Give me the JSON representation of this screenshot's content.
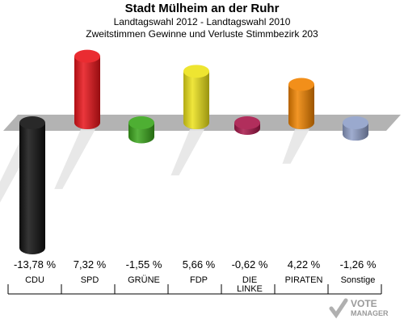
{
  "chart_data": {
    "type": "bar",
    "title": "Stadt Mülheim an der Ruhr",
    "subtitle_1": "Landtagswahl 2012 - Landtagswahl 2010",
    "subtitle_2": "Zweitstimmen Gewinne und Verluste Stimmbezirk 203",
    "categories": [
      "CDU",
      "SPD",
      "GRÜNE",
      "FDP",
      "DIE LINKE",
      "PIRATEN",
      "Sonstige"
    ],
    "category_lines": [
      [
        "CDU"
      ],
      [
        "SPD"
      ],
      [
        "GRÜNE"
      ],
      [
        "FDP"
      ],
      [
        "DIE",
        "LINKE"
      ],
      [
        "PIRATEN"
      ],
      [
        "Sonstige"
      ]
    ],
    "values": [
      -13.78,
      7.32,
      -1.55,
      5.66,
      -0.62,
      4.22,
      -1.26
    ],
    "value_labels": [
      "-13,78 %",
      "7,32 %",
      "-1,55 %",
      "5,66 %",
      "-0,62 %",
      "4,22 %",
      "-1,26 %"
    ],
    "colors": [
      "#111111",
      "#e8141a",
      "#3aa61c",
      "#ece21a",
      "#a8174a",
      "#f08300",
      "#8f9fc8"
    ],
    "unit": "%"
  },
  "logo": {
    "text": "VOTE",
    "subtext": "MANAGER"
  }
}
